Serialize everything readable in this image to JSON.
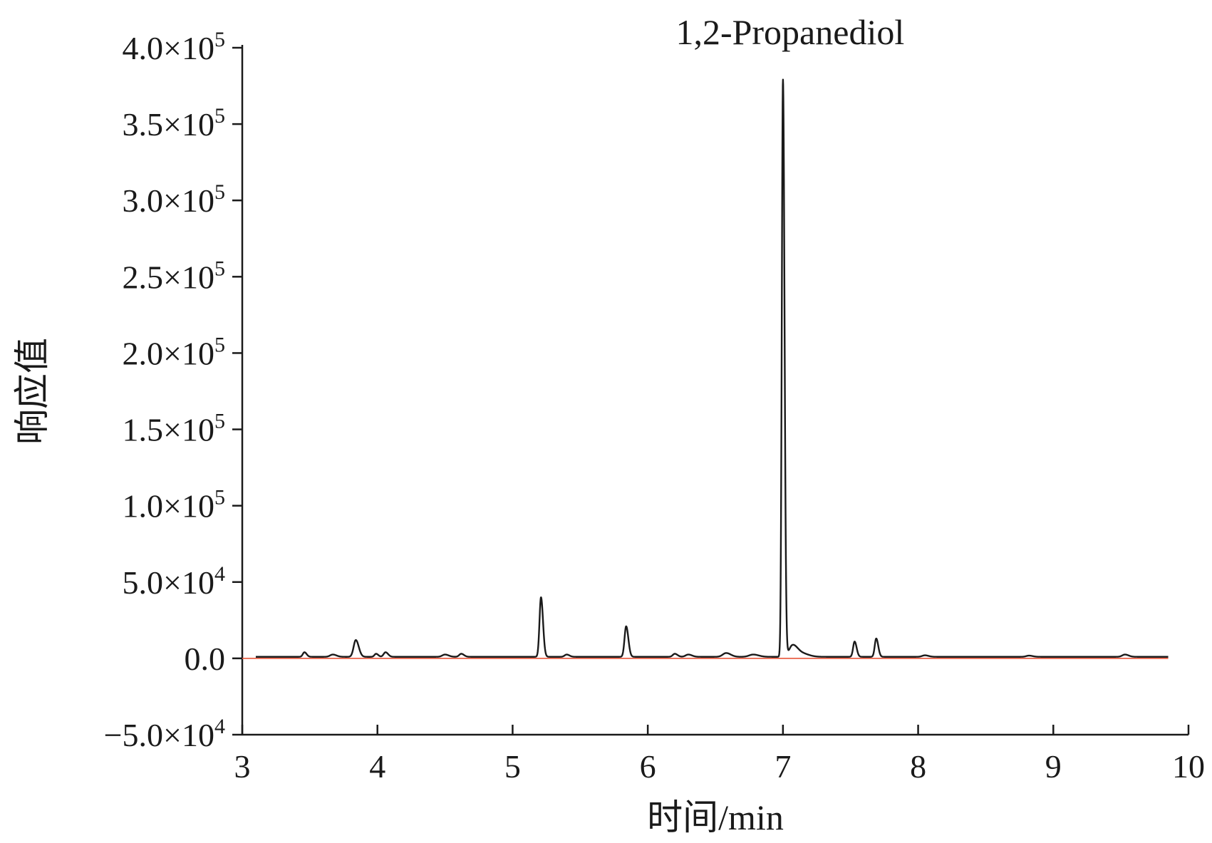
{
  "chart_data": {
    "type": "line",
    "xlabel": "时间/min",
    "ylabel": "响应值",
    "xlim": [
      3,
      10
    ],
    "ylim": [
      -50000,
      400000
    ],
    "x_ticks": [
      3,
      4,
      5,
      6,
      7,
      8,
      9,
      10
    ],
    "x_tick_labels": [
      "3",
      "4",
      "5",
      "6",
      "7",
      "8",
      "9",
      "10"
    ],
    "y_ticks": [
      {
        "value": -50000,
        "mantissa": "−5.0×10",
        "exp": "4"
      },
      {
        "value": 0,
        "mantissa": "0.0",
        "exp": ""
      },
      {
        "value": 50000,
        "mantissa": "5.0×10",
        "exp": "4"
      },
      {
        "value": 100000,
        "mantissa": "1.0×10",
        "exp": "5"
      },
      {
        "value": 150000,
        "mantissa": "1.5×10",
        "exp": "5"
      },
      {
        "value": 200000,
        "mantissa": "2.0×10",
        "exp": "5"
      },
      {
        "value": 250000,
        "mantissa": "2.5×10",
        "exp": "5"
      },
      {
        "value": 300000,
        "mantissa": "3.0×10",
        "exp": "5"
      },
      {
        "value": 350000,
        "mantissa": "3.5×10",
        "exp": "5"
      },
      {
        "value": 400000,
        "mantissa": "4.0×10",
        "exp": "5"
      }
    ],
    "grid": false,
    "annotations": [
      {
        "text": "1,2-Propanediol",
        "x": 7.0,
        "y": 380000
      }
    ],
    "series": [
      {
        "color": "#1a1a1a",
        "baseline": 0,
        "x_range": [
          3.1,
          9.85
        ],
        "peaks": [
          {
            "x": 3.46,
            "y": 3000,
            "w": 0.012
          },
          {
            "x": 3.67,
            "y": 1500,
            "w": 0.02
          },
          {
            "x": 3.84,
            "y": 11000,
            "w": 0.016
          },
          {
            "x": 3.99,
            "y": 2000,
            "w": 0.012
          },
          {
            "x": 4.06,
            "y": 3000,
            "w": 0.014
          },
          {
            "x": 4.5,
            "y": 1500,
            "w": 0.02
          },
          {
            "x": 4.62,
            "y": 2000,
            "w": 0.015
          },
          {
            "x": 5.21,
            "y": 39000,
            "w": 0.011
          },
          {
            "x": 5.4,
            "y": 1500,
            "w": 0.015
          },
          {
            "x": 5.84,
            "y": 20000,
            "w": 0.012
          },
          {
            "x": 6.2,
            "y": 2000,
            "w": 0.015
          },
          {
            "x": 6.3,
            "y": 1500,
            "w": 0.02
          },
          {
            "x": 6.58,
            "y": 2500,
            "w": 0.025
          },
          {
            "x": 6.78,
            "y": 1500,
            "w": 0.03
          },
          {
            "x": 7.0,
            "y": 378000,
            "w": 0.0085
          },
          {
            "x": 7.07,
            "y": 7000,
            "w": 0.025
          },
          {
            "x": 7.13,
            "y": 2500,
            "w": 0.04
          },
          {
            "x": 7.53,
            "y": 10000,
            "w": 0.011
          },
          {
            "x": 7.69,
            "y": 12000,
            "w": 0.011
          },
          {
            "x": 8.05,
            "y": 1000,
            "w": 0.02
          },
          {
            "x": 8.82,
            "y": 800,
            "w": 0.02
          },
          {
            "x": 9.53,
            "y": 1500,
            "w": 0.02
          }
        ],
        "offset": 1000
      },
      {
        "color": "#e8553a",
        "constant": 0,
        "x_range": [
          3.0,
          9.85
        ]
      }
    ]
  }
}
